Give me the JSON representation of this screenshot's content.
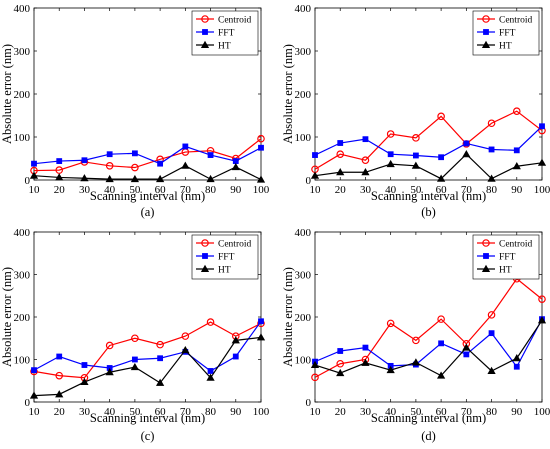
{
  "chart_data": [
    {
      "type": "line",
      "panel_label": "(a)",
      "xlabel": "Scanning interval (nm)",
      "ylabel": "Absolute error (nm)",
      "x": [
        10,
        20,
        30,
        40,
        50,
        60,
        70,
        80,
        90,
        100
      ],
      "xlim": [
        10,
        100
      ],
      "ylim": [
        0,
        400
      ],
      "xticks": [
        10,
        20,
        30,
        40,
        50,
        60,
        70,
        80,
        90,
        100
      ],
      "yticks": [
        0,
        100,
        200,
        300,
        400
      ],
      "legend": "top-right",
      "series": [
        {
          "name": "Centroid",
          "color": "#ff0000",
          "marker": "circle",
          "values": [
            22,
            23,
            42,
            33,
            29,
            48,
            65,
            68,
            50,
            96
          ]
        },
        {
          "name": "FFT",
          "color": "#0000ff",
          "marker": "square",
          "values": [
            38,
            44,
            46,
            60,
            62,
            38,
            78,
            58,
            44,
            75
          ]
        },
        {
          "name": "HT",
          "color": "#000000",
          "marker": "triangle",
          "values": [
            10,
            6,
            4,
            2,
            2,
            2,
            33,
            2,
            30,
            1
          ]
        }
      ]
    },
    {
      "type": "line",
      "panel_label": "(b)",
      "xlabel": "Scanning interval (nm)",
      "ylabel": "Absolute error (nm)",
      "x": [
        10,
        20,
        30,
        40,
        50,
        60,
        70,
        80,
        90,
        100
      ],
      "xlim": [
        10,
        100
      ],
      "ylim": [
        0,
        400
      ],
      "xticks": [
        10,
        20,
        30,
        40,
        50,
        60,
        70,
        80,
        90,
        100
      ],
      "yticks": [
        0,
        100,
        200,
        300,
        400
      ],
      "legend": "top-right",
      "series": [
        {
          "name": "Centroid",
          "color": "#ff0000",
          "marker": "circle",
          "values": [
            25,
            60,
            46,
            107,
            98,
            148,
            84,
            132,
            160,
            115
          ]
        },
        {
          "name": "FFT",
          "color": "#0000ff",
          "marker": "square",
          "values": [
            58,
            86,
            95,
            60,
            57,
            53,
            85,
            71,
            69,
            125
          ]
        },
        {
          "name": "HT",
          "color": "#000000",
          "marker": "triangle",
          "values": [
            10,
            18,
            18,
            37,
            33,
            3,
            60,
            3,
            32,
            40
          ]
        }
      ]
    },
    {
      "type": "line",
      "panel_label": "(c)",
      "xlabel": "Scanning interval (nm)",
      "ylabel": "Absolute error (nm)",
      "x": [
        10,
        20,
        30,
        40,
        50,
        60,
        70,
        80,
        90,
        100
      ],
      "xlim": [
        10,
        100
      ],
      "ylim": [
        0,
        400
      ],
      "xticks": [
        10,
        20,
        30,
        40,
        50,
        60,
        70,
        80,
        90,
        100
      ],
      "yticks": [
        0,
        100,
        200,
        300,
        400
      ],
      "legend": "top-right",
      "series": [
        {
          "name": "Centroid",
          "color": "#ff0000",
          "marker": "circle",
          "values": [
            72,
            62,
            57,
            133,
            150,
            135,
            155,
            188,
            155,
            185
          ]
        },
        {
          "name": "FFT",
          "color": "#0000ff",
          "marker": "square",
          "values": [
            75,
            107,
            87,
            80,
            100,
            103,
            118,
            73,
            107,
            190
          ]
        },
        {
          "name": "HT",
          "color": "#000000",
          "marker": "triangle",
          "values": [
            15,
            18,
            47,
            70,
            82,
            45,
            122,
            57,
            145,
            152
          ]
        }
      ]
    },
    {
      "type": "line",
      "panel_label": "(d)",
      "xlabel": "Scanning interval (nm)",
      "ylabel": "Absolute error (nm)",
      "x": [
        10,
        20,
        30,
        40,
        50,
        60,
        70,
        80,
        90,
        100
      ],
      "xlim": [
        10,
        100
      ],
      "ylim": [
        0,
        400
      ],
      "xticks": [
        10,
        20,
        30,
        40,
        50,
        60,
        70,
        80,
        90,
        100
      ],
      "yticks": [
        0,
        100,
        200,
        300,
        400
      ],
      "legend": "top-right",
      "series": [
        {
          "name": "Centroid",
          "color": "#ff0000",
          "marker": "circle",
          "values": [
            58,
            90,
            100,
            185,
            145,
            195,
            137,
            205,
            290,
            242
          ]
        },
        {
          "name": "FFT",
          "color": "#0000ff",
          "marker": "square",
          "values": [
            95,
            120,
            128,
            85,
            88,
            138,
            112,
            162,
            83,
            195
          ]
        },
        {
          "name": "HT",
          "color": "#000000",
          "marker": "triangle",
          "values": [
            87,
            68,
            92,
            75,
            93,
            62,
            128,
            73,
            103,
            192
          ]
        }
      ]
    }
  ]
}
